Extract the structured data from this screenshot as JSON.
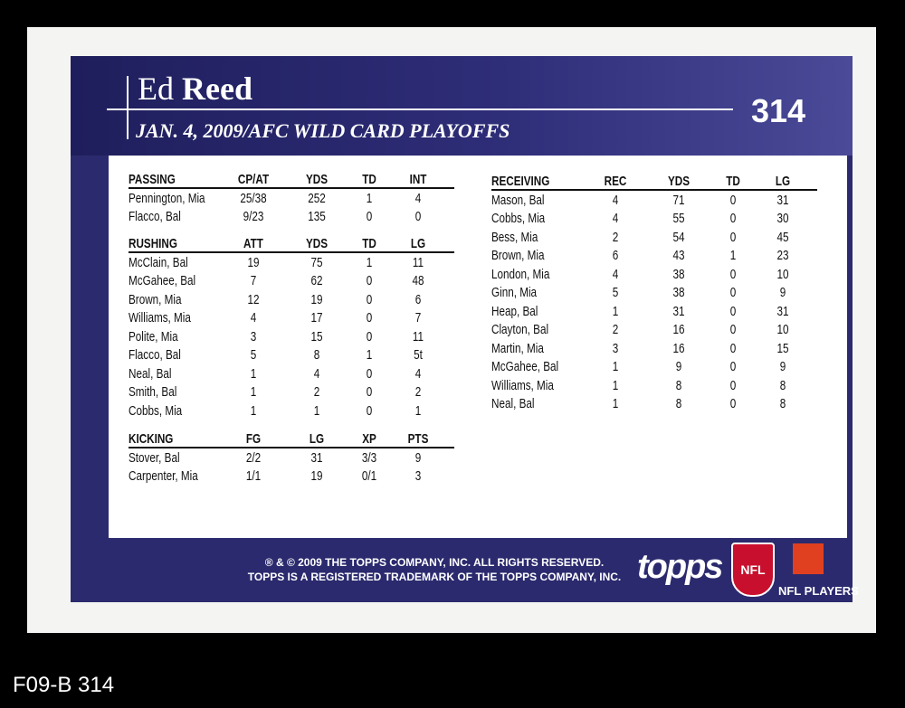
{
  "header": {
    "first_name": "Ed",
    "last_name": "Reed",
    "game": "JAN. 4, 2009/AFC WILD CARD PLAYOFFS",
    "card_number": "314"
  },
  "tables": {
    "passing": {
      "header": [
        "PASSING",
        "CP/AT",
        "YDS",
        "TD",
        "INT"
      ],
      "rows": [
        [
          "Pennington, Mia",
          "25/38",
          "252",
          "1",
          "4"
        ],
        [
          "Flacco, Bal",
          "9/23",
          "135",
          "0",
          "0"
        ]
      ]
    },
    "rushing": {
      "header": [
        "RUSHING",
        "ATT",
        "YDS",
        "TD",
        "LG"
      ],
      "rows": [
        [
          "McClain, Bal",
          "19",
          "75",
          "1",
          "11"
        ],
        [
          "McGahee, Bal",
          "7",
          "62",
          "0",
          "48"
        ],
        [
          "Brown, Mia",
          "12",
          "19",
          "0",
          "6"
        ],
        [
          "Williams, Mia",
          "4",
          "17",
          "0",
          "7"
        ],
        [
          "Polite, Mia",
          "3",
          "15",
          "0",
          "11"
        ],
        [
          "Flacco, Bal",
          "5",
          "8",
          "1",
          "5t"
        ],
        [
          "Neal, Bal",
          "1",
          "4",
          "0",
          "4"
        ],
        [
          "Smith, Bal",
          "1",
          "2",
          "0",
          "2"
        ],
        [
          "Cobbs, Mia",
          "1",
          "1",
          "0",
          "1"
        ]
      ]
    },
    "kicking": {
      "header": [
        "KICKING",
        "FG",
        "LG",
        "XP",
        "PTS"
      ],
      "rows": [
        [
          "Stover, Bal",
          "2/2",
          "31",
          "3/3",
          "9"
        ],
        [
          "Carpenter, Mia",
          "1/1",
          "19",
          "0/1",
          "3"
        ]
      ]
    },
    "receiving": {
      "header": [
        "RECEIVING",
        "REC",
        "YDS",
        "TD",
        "LG"
      ],
      "rows": [
        [
          "Mason, Bal",
          "4",
          "71",
          "0",
          "31"
        ],
        [
          "Cobbs, Mia",
          "4",
          "55",
          "0",
          "30"
        ],
        [
          "Bess, Mia",
          "2",
          "54",
          "0",
          "45"
        ],
        [
          "Brown, Mia",
          "6",
          "43",
          "1",
          "23"
        ],
        [
          "London, Mia",
          "4",
          "38",
          "0",
          "10"
        ],
        [
          "Ginn, Mia",
          "5",
          "38",
          "0",
          "9"
        ],
        [
          "Heap, Bal",
          "1",
          "31",
          "0",
          "31"
        ],
        [
          "Clayton, Bal",
          "2",
          "16",
          "0",
          "10"
        ],
        [
          "Martin, Mia",
          "3",
          "16",
          "0",
          "15"
        ],
        [
          "McGahee, Bal",
          "1",
          "9",
          "0",
          "9"
        ],
        [
          "Williams, Mia",
          "1",
          "8",
          "0",
          "8"
        ],
        [
          "Neal, Bal",
          "1",
          "8",
          "0",
          "8"
        ]
      ]
    }
  },
  "footer": {
    "copyright": "® & © 2009 THE TOPPS COMPANY, INC. ALL RIGHTS RESERVED.",
    "trademark": "TOPPS IS A REGISTERED TRADEMARK OF THE TOPPS COMPANY, INC.",
    "topps_logo": "topps",
    "nfl_logo": "NFL",
    "players_logo": "NFL PLAYERS"
  },
  "caption": "F09-B 314"
}
